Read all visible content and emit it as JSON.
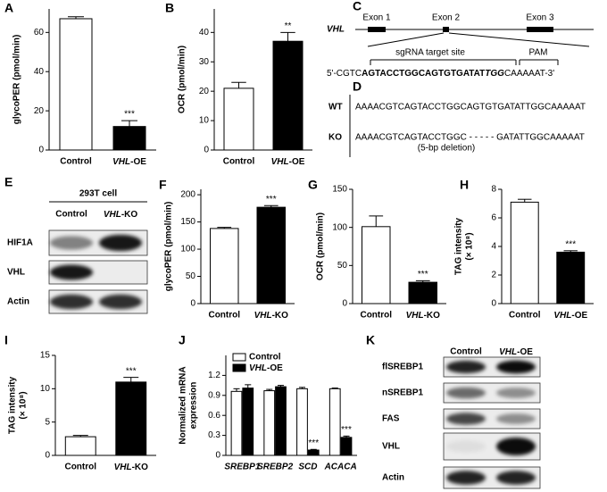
{
  "chart_data": [
    {
      "type": "bar",
      "panel": "A",
      "ylabel": [
        "glycoPER (pmol/min)"
      ],
      "categories": [
        "Control",
        "VHL-OE"
      ],
      "values": [
        67,
        12
      ],
      "errors": [
        1,
        3
      ],
      "colors": [
        "#ffffff",
        "#000000"
      ],
      "significance": [
        null,
        "***"
      ],
      "ylim": [
        0,
        72
      ],
      "yticks": [
        0,
        20,
        40,
        60
      ]
    },
    {
      "type": "bar",
      "panel": "B",
      "ylabel": [
        "OCR (pmol/min)"
      ],
      "categories": [
        "Control",
        "VHL-OE"
      ],
      "values": [
        21,
        37
      ],
      "errors": [
        2,
        3
      ],
      "colors": [
        "#ffffff",
        "#000000"
      ],
      "significance": [
        null,
        "**"
      ],
      "ylim": [
        0,
        48
      ],
      "yticks": [
        0,
        10,
        20,
        30,
        40
      ]
    },
    {
      "type": "bar",
      "panel": "F",
      "ylabel": [
        "glycoPER (pmol/min)"
      ],
      "categories": [
        "Control",
        "VHL-KO"
      ],
      "values": [
        138,
        177
      ],
      "errors": [
        2,
        3
      ],
      "colors": [
        "#ffffff",
        "#000000"
      ],
      "significance": [
        null,
        "***"
      ],
      "ylim": [
        0,
        210
      ],
      "yticks": [
        0,
        50,
        100,
        150,
        200
      ]
    },
    {
      "type": "bar",
      "panel": "G",
      "ylabel": [
        "OCR (pmol/min)"
      ],
      "categories": [
        "Control",
        "VHL-KO"
      ],
      "values": [
        101,
        28
      ],
      "errors": [
        14,
        2
      ],
      "colors": [
        "#ffffff",
        "#000000"
      ],
      "significance": [
        null,
        "***"
      ],
      "ylim": [
        0,
        150
      ],
      "yticks": [
        0,
        50,
        100,
        150
      ]
    },
    {
      "type": "bar",
      "panel": "H",
      "ylabel": [
        "TAG intensity",
        "(× 10⁸)"
      ],
      "categories": [
        "Control",
        "VHL-OE"
      ],
      "values": [
        7.1,
        3.6
      ],
      "errors": [
        0.2,
        0.1
      ],
      "colors": [
        "#ffffff",
        "#000000"
      ],
      "significance": [
        null,
        "***"
      ],
      "ylim": [
        0,
        8
      ],
      "yticks": [
        0,
        2,
        4,
        6,
        8
      ]
    },
    {
      "type": "bar",
      "panel": "I",
      "ylabel": [
        "TAG intensity",
        "(× 10⁸)"
      ],
      "categories": [
        "Control",
        "VHL-KO"
      ],
      "values": [
        2.8,
        11.0
      ],
      "errors": [
        0.2,
        0.7
      ],
      "colors": [
        "#ffffff",
        "#000000"
      ],
      "significance": [
        null,
        "***"
      ],
      "ylim": [
        0,
        15
      ],
      "yticks": [
        0,
        5,
        10,
        15
      ]
    },
    {
      "type": "grouped_bar",
      "panel": "J",
      "ylabel": [
        "Normalized mRNA",
        "expression"
      ],
      "categories": [
        "SREBP1",
        "SREBP2",
        "SCD",
        "ACACA"
      ],
      "italic_categories": true,
      "legend": "upper left",
      "ylim": [
        0,
        1.5
      ],
      "yticks": [
        0,
        0.3,
        0.6,
        0.9,
        1.2
      ],
      "series": [
        {
          "name": "Control",
          "color": "#ffffff",
          "values": [
            0.96,
            0.97,
            1.0,
            1.0
          ],
          "errors": [
            0.04,
            0.02,
            0.02,
            0.01
          ]
        },
        {
          "name": "VHL-OE",
          "color": "#000000",
          "values": [
            1.01,
            1.03,
            0.08,
            0.27
          ],
          "errors": [
            0.05,
            0.02,
            0.01,
            0.02
          ],
          "significance": [
            null,
            null,
            "***",
            "***"
          ]
        }
      ]
    }
  ],
  "gene_diagram": {
    "panel": "C",
    "gene": "VHL",
    "exons": [
      "Exon 1",
      "Exon 2",
      "Exon 3"
    ],
    "target_label": "sgRNA target site",
    "pam_label": "PAM",
    "sequence": [
      {
        "text": "5'-CGTC",
        "style": "normal"
      },
      {
        "text": "AGTACCTGGCAGTGTGATAT",
        "style": "bold"
      },
      {
        "text": "TGG",
        "style": "bold-italic"
      },
      {
        "text": "CAAAAAT-3'",
        "style": "normal"
      }
    ]
  },
  "sequence_panel": {
    "panel": "D",
    "rows": [
      {
        "label": "WT",
        "sequence": "AAAACGTCAGTACCTGGCAGTGTGATATTGGCAAAAAT"
      },
      {
        "label": "KO",
        "sequence": "AAAACGTCAGTACCTGGC - - - - - GATATTGGCAAAAAT"
      }
    ],
    "note": "(5-bp deletion)"
  },
  "blot_e": {
    "panel": "E",
    "title": "293T cell",
    "lanes": [
      "Control",
      "VHL-KO"
    ],
    "rows": [
      "HIF1A",
      "VHL",
      "Actin"
    ]
  },
  "blot_k": {
    "panel": "K",
    "lanes": [
      "Control",
      "VHL-OE"
    ],
    "rows": [
      "flSREBP1",
      "nSREBP1",
      "FAS",
      "VHL",
      "Actin"
    ]
  }
}
